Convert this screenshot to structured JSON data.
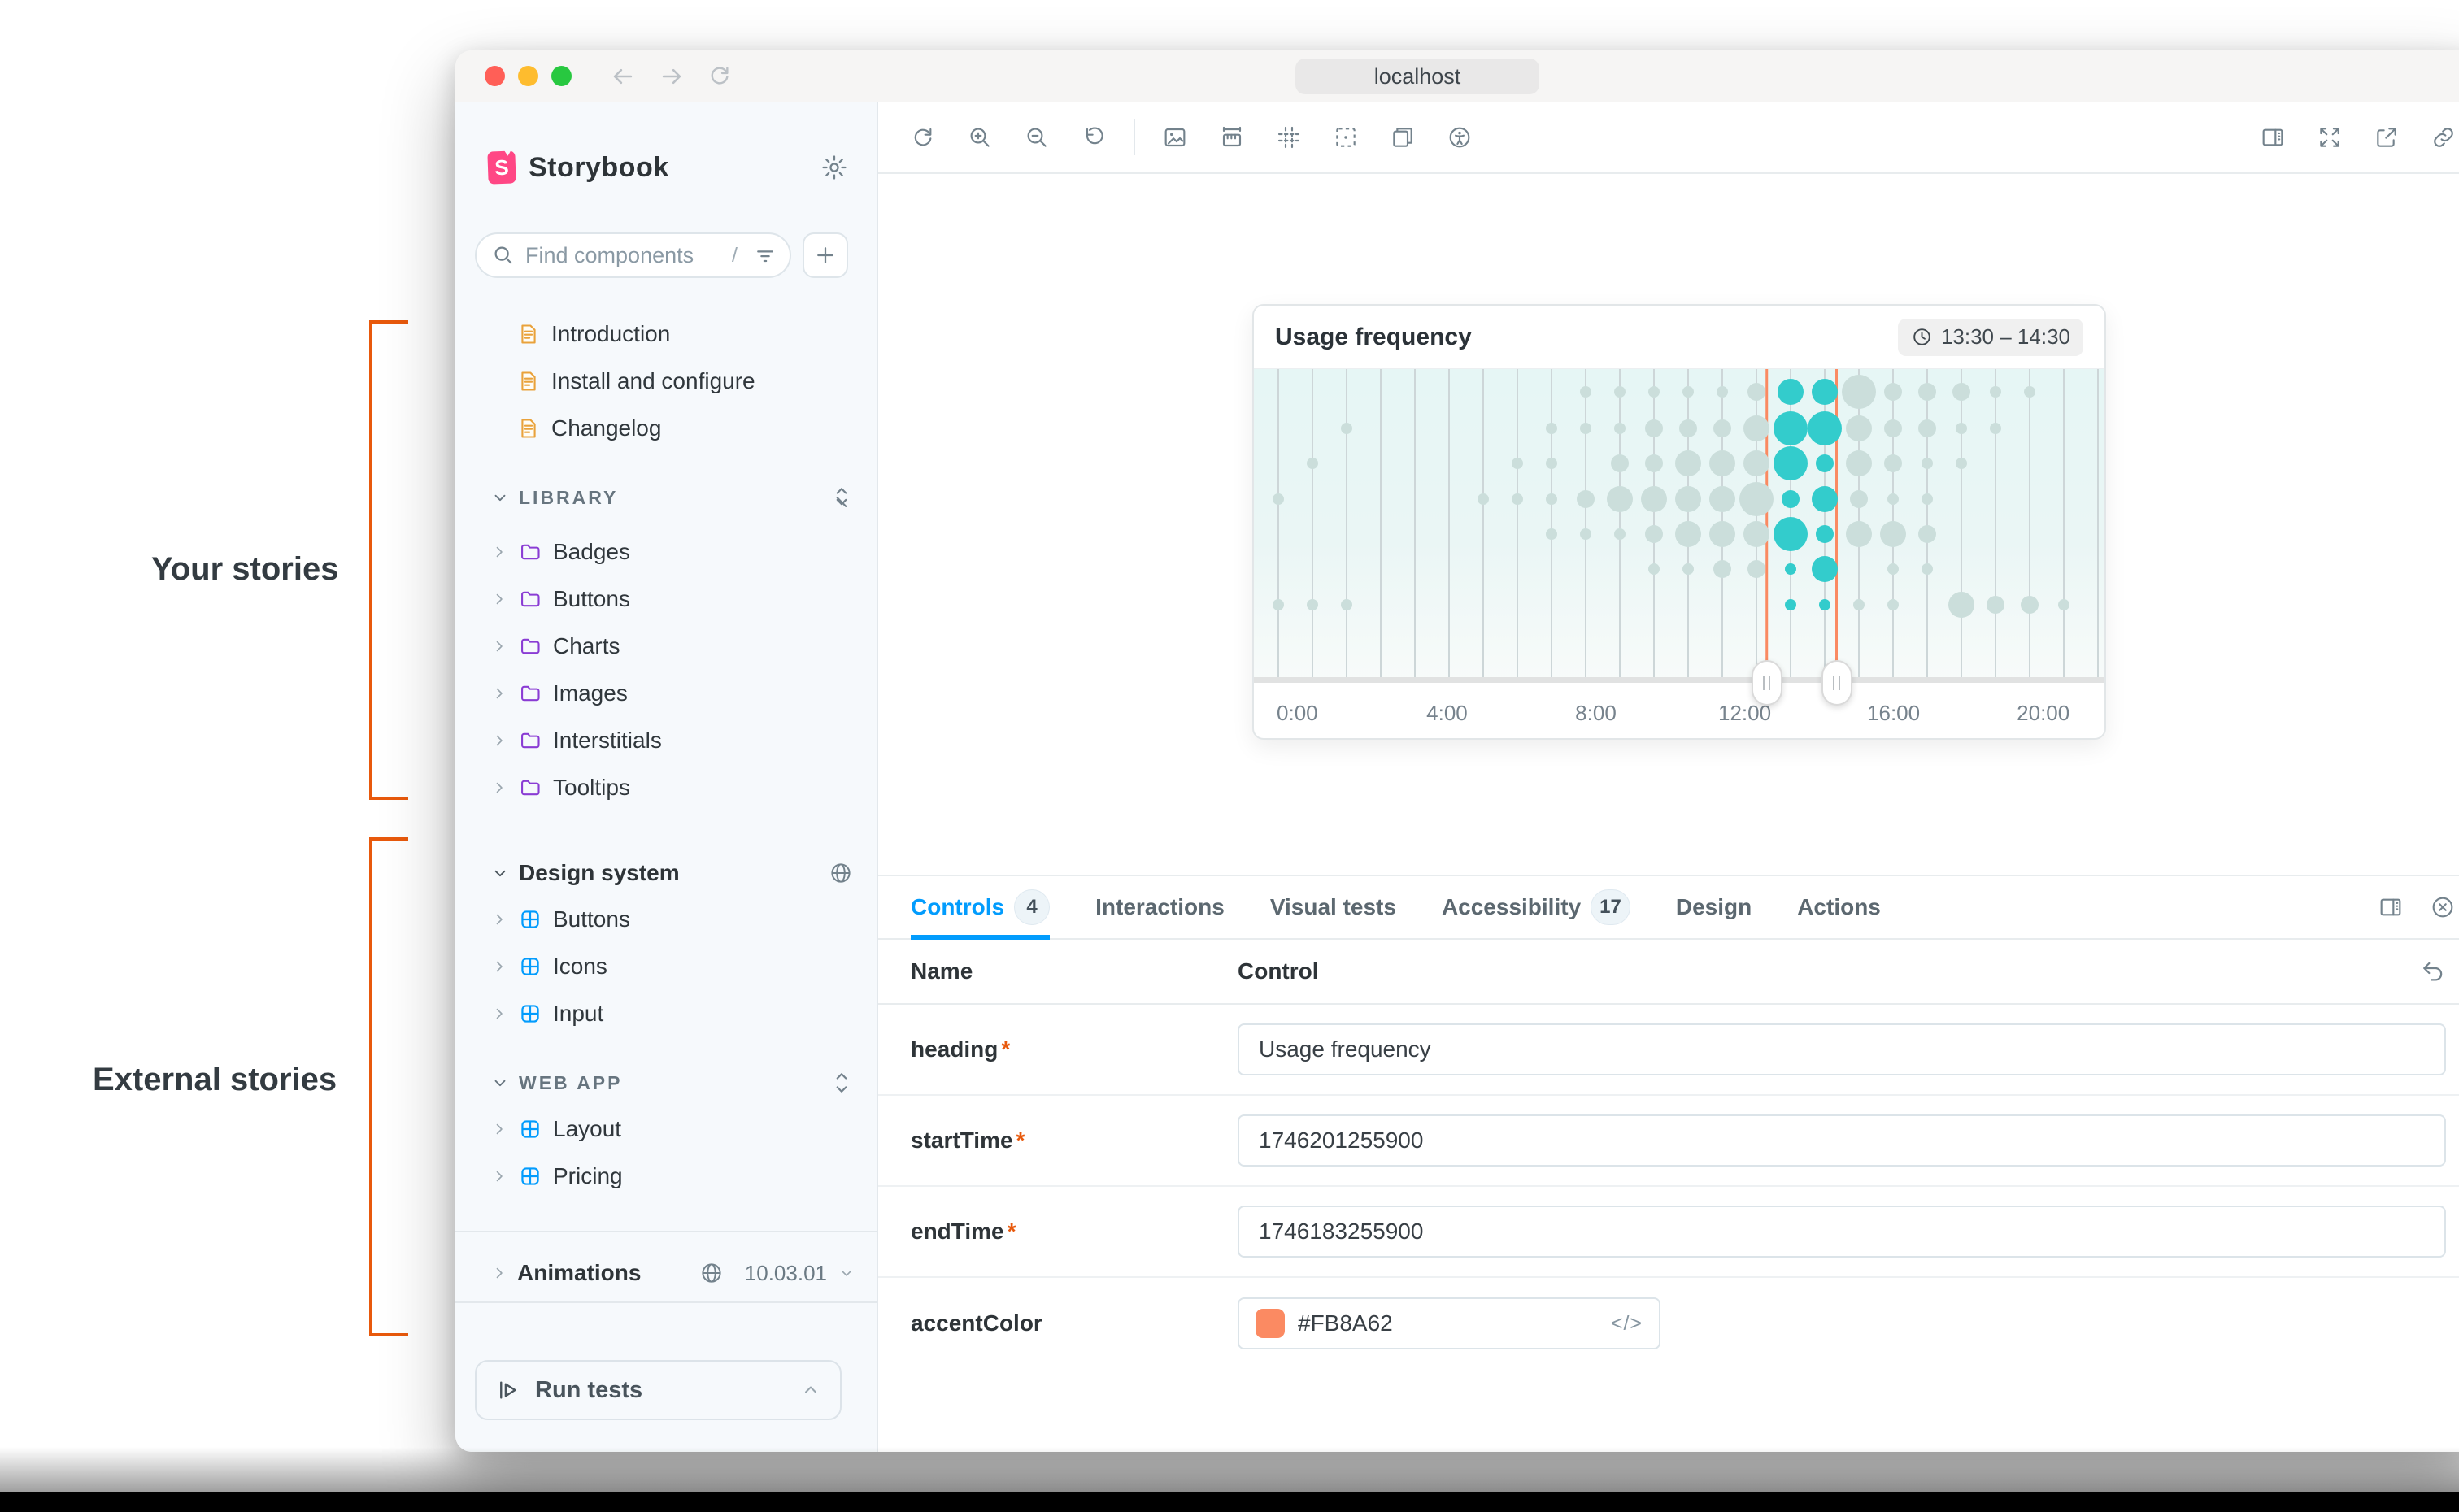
{
  "annotations": {
    "group1": "Your stories",
    "group2": "External stories",
    "bracket_color": "#E8590C"
  },
  "titlebar": {
    "url": "localhost"
  },
  "sidebar": {
    "brand": "Storybook",
    "logo_letter": "S",
    "search": {
      "placeholder": "Find components",
      "shortcut": "/"
    },
    "docs": [
      {
        "label": "Introduction",
        "icon": "document-icon"
      },
      {
        "label": "Install and configure",
        "icon": "document-icon"
      },
      {
        "label": "Changelog",
        "icon": "document-icon"
      }
    ],
    "library": {
      "title": "LIBRARY",
      "items": [
        "Badges",
        "Buttons",
        "Charts",
        "Images",
        "Interstitials",
        "Tooltips"
      ]
    },
    "design_system": {
      "title": "Design system",
      "items": [
        "Buttons",
        "Icons",
        "Input"
      ]
    },
    "web_app": {
      "title": "WEB APP",
      "items": [
        "Layout",
        "Pricing"
      ]
    },
    "animations": {
      "label": "Animations",
      "version": "10.03.01"
    },
    "run_tests": "Run tests"
  },
  "canvas_toolbar": {
    "left_icons": [
      "remount-icon",
      "zoom-in-icon",
      "zoom-out-icon",
      "zoom-reset-icon"
    ],
    "middle_icons": [
      "background-icon",
      "measure-icon",
      "grid-icon",
      "outline-icon",
      "viewport-icon",
      "accessibility-icon"
    ],
    "right_icons": [
      "panel-toggle-icon",
      "fullscreen-icon",
      "open-external-icon",
      "copy-link-icon"
    ]
  },
  "chart_data": {
    "type": "bubble-matrix",
    "title": "Usage frequency",
    "time_range_badge": "13:30 – 14:30",
    "x_ticks": [
      "0:00",
      "4:00",
      "8:00",
      "12:00",
      "16:00",
      "20:00"
    ],
    "x_tick_positions_pct": [
      5.1,
      22.7,
      40.2,
      57.7,
      75.2,
      92.8
    ],
    "hours": 24,
    "rows": 7,
    "grid": [
      [
        0,
        0,
        0,
        1,
        0,
        0,
        1
      ],
      [
        0,
        0,
        1,
        0,
        0,
        0,
        1
      ],
      [
        0,
        1,
        0,
        0,
        0,
        0,
        1
      ],
      [
        0,
        0,
        0,
        0,
        0,
        0,
        0
      ],
      [
        0,
        0,
        0,
        0,
        0,
        0,
        0
      ],
      [
        0,
        0,
        0,
        0,
        0,
        0,
        0
      ],
      [
        0,
        0,
        0,
        1,
        0,
        0,
        0
      ],
      [
        0,
        0,
        1,
        1,
        0,
        0,
        0
      ],
      [
        0,
        1,
        1,
        1,
        1,
        0,
        0
      ],
      [
        1,
        1,
        0,
        2,
        1,
        0,
        0
      ],
      [
        1,
        1,
        2,
        3,
        1,
        0,
        0
      ],
      [
        1,
        2,
        2,
        3,
        2,
        1,
        0
      ],
      [
        1,
        2,
        3,
        3,
        3,
        1,
        0
      ],
      [
        1,
        2,
        3,
        3,
        3,
        2,
        0
      ],
      [
        2,
        3,
        3,
        4,
        3,
        2,
        0
      ],
      [
        3,
        4,
        4,
        2,
        4,
        1,
        1
      ],
      [
        3,
        4,
        2,
        3,
        2,
        3,
        1
      ],
      [
        4,
        3,
        3,
        2,
        3,
        0,
        1
      ],
      [
        2,
        2,
        2,
        1,
        3,
        1,
        1
      ],
      [
        2,
        2,
        1,
        1,
        2,
        1,
        0
      ],
      [
        2,
        1,
        1,
        0,
        0,
        0,
        3
      ],
      [
        1,
        1,
        0,
        0,
        0,
        0,
        2
      ],
      [
        1,
        0,
        0,
        0,
        0,
        0,
        2
      ],
      [
        0,
        0,
        0,
        0,
        0,
        0,
        1
      ]
    ],
    "highlight_columns": [
      15,
      16
    ],
    "selection_lines_pct": [
      60.3,
      68.5
    ],
    "legend": "none",
    "colors": {
      "dot": "#CBDEDB",
      "dot_highlight": "#33CCCC",
      "selection": "#FA8A62",
      "gridline": "#CDD6D8",
      "plot_bg_top": "#E6F6F5",
      "plot_bg_bottom": "#F8FBFA"
    }
  },
  "panel": {
    "required_marker": "*",
    "raw_toggle": "</>",
    "tabs": [
      {
        "label": "Controls",
        "badge": "4"
      },
      {
        "label": "Interactions"
      },
      {
        "label": "Visual tests"
      },
      {
        "label": "Accessibility",
        "badge": "17"
      },
      {
        "label": "Design"
      },
      {
        "label": "Actions"
      }
    ],
    "columns": {
      "name": "Name",
      "control": "Control"
    },
    "rows": [
      {
        "name": "heading",
        "required": true,
        "type": "text",
        "value": "Usage frequency"
      },
      {
        "name": "startTime",
        "required": true,
        "type": "text",
        "value": "1746201255900"
      },
      {
        "name": "endTime",
        "required": true,
        "type": "text",
        "value": "1746183255900"
      },
      {
        "name": "accentColor",
        "required": false,
        "type": "color",
        "value": "#FB8A62",
        "swatch": "#FB8A62"
      }
    ]
  },
  "window_controls": {
    "close": "#FF5F57",
    "minimize": "#FEBC2E",
    "maximize": "#28C840"
  }
}
